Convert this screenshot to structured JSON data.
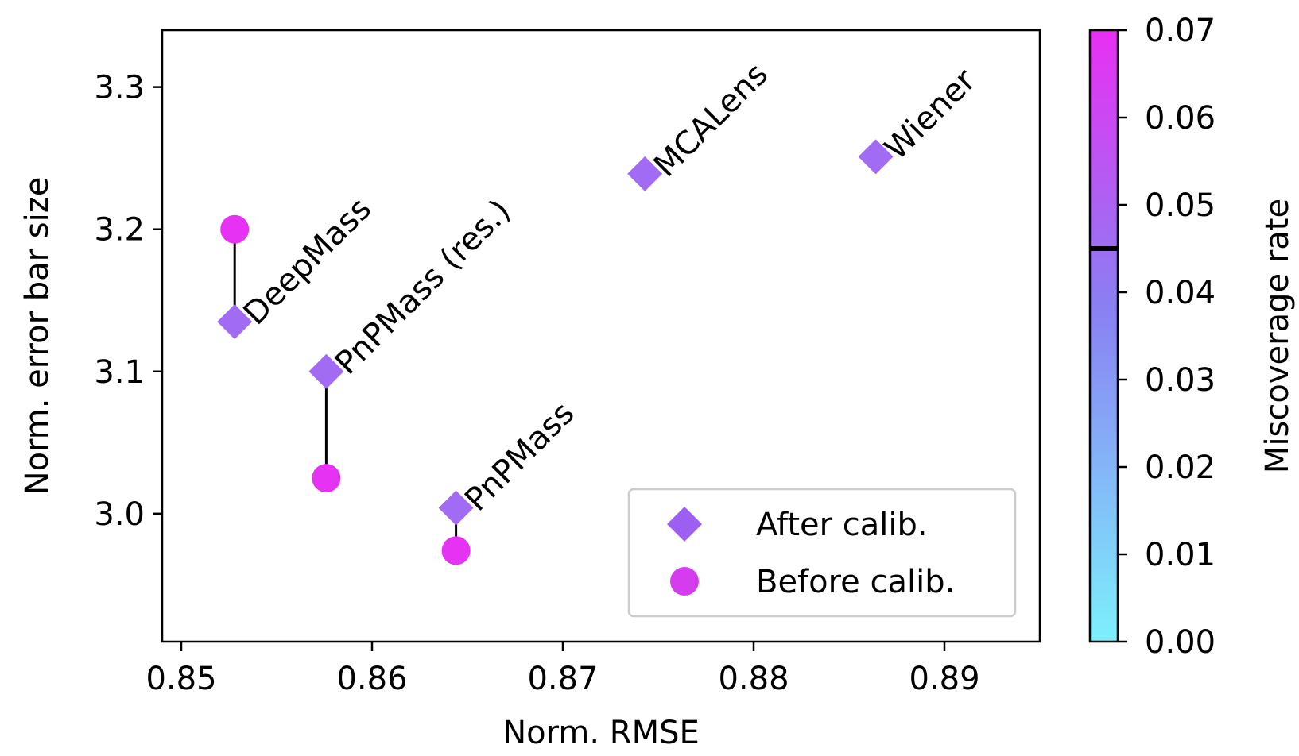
{
  "chart_data": {
    "type": "scatter",
    "title": "",
    "xlabel": "Norm. RMSE",
    "ylabel": "Norm. error bar size",
    "xlim": [
      0.849,
      0.895
    ],
    "ylim": [
      2.91,
      3.34
    ],
    "xticks": [
      0.85,
      0.86,
      0.87,
      0.88,
      0.89
    ],
    "xtick_labels": [
      "0.85",
      "0.86",
      "0.87",
      "0.88",
      "0.89"
    ],
    "yticks": [
      3.0,
      3.1,
      3.2,
      3.3
    ],
    "ytick_labels": [
      "3.0",
      "3.1",
      "3.2",
      "3.3"
    ],
    "grid": false,
    "legend_position": "lower-right",
    "series": [
      {
        "name": "After calib.",
        "marker": "diamond"
      },
      {
        "name": "Before calib.",
        "marker": "circle"
      }
    ],
    "methods": [
      {
        "label": "DeepMass",
        "x": 0.8528,
        "after": 3.135,
        "before": 3.2,
        "after_miscoverage": 0.046,
        "before_miscoverage": 0.069
      },
      {
        "label": "PnPMass (res.)",
        "x": 0.8576,
        "after": 3.1,
        "before": 3.025,
        "after_miscoverage": 0.046,
        "before_miscoverage": 0.069
      },
      {
        "label": "PnPMass",
        "x": 0.8644,
        "after": 3.004,
        "before": 2.974,
        "after_miscoverage": 0.046,
        "before_miscoverage": 0.069
      },
      {
        "label": "MCALens",
        "x": 0.8743,
        "after": 3.239,
        "before": null,
        "after_miscoverage": 0.046,
        "before_miscoverage": null
      },
      {
        "label": "Wiener",
        "x": 0.8864,
        "after": 3.251,
        "before": null,
        "after_miscoverage": 0.046,
        "before_miscoverage": null
      }
    ],
    "colorbar": {
      "label": "Miscoverage rate",
      "colormap": "cool",
      "range": [
        0.0,
        0.07
      ],
      "ticks": [
        0.0,
        0.01,
        0.02,
        0.03,
        0.04,
        0.05,
        0.06,
        0.07
      ],
      "tick_labels": [
        "0.00",
        "0.01",
        "0.02",
        "0.03",
        "0.04",
        "0.05",
        "0.06",
        "0.07"
      ],
      "target_line": 0.045
    },
    "colors": {
      "after": "#9c5ff2",
      "before": "#d53cf0",
      "connector": "#000000",
      "cmap_low": "#7df0fc",
      "cmap_mid": "#8a7ff3",
      "cmap_high": "#e92ff3"
    }
  }
}
